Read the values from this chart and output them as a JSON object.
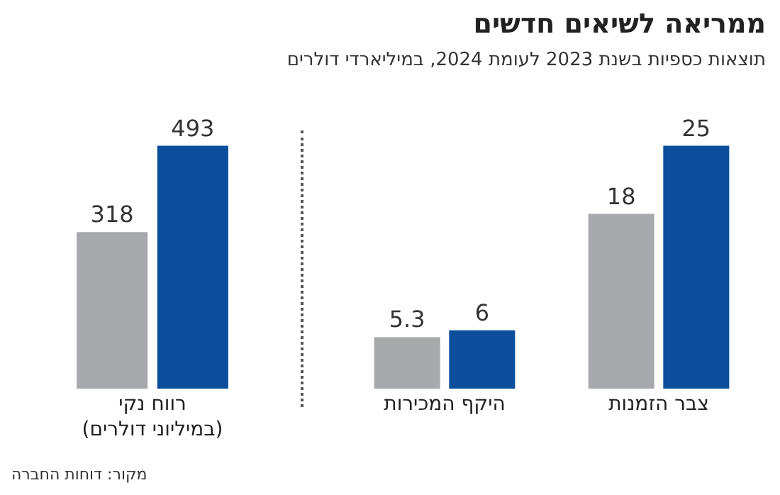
{
  "chart_data": [
    {
      "type": "other",
      "title": "ממריאה לשיאים חדשים",
      "subtitle": "תוצאות כספיות בשנת 2023 לעומת 2024, במיליארדי דולרים"
    },
    {
      "type": "bar",
      "annotations": [
        "מקור: דוחות החברה"
      ],
      "categories": [
        "רווח נקי\n(במיליוני דולרים)"
      ],
      "data_labels": true,
      "series": [
        {
          "color": "#a7a9ac",
          "values": [
            318
          ]
        },
        {
          "color": "#0b4f9c",
          "values": [
            493
          ]
        }
      ]
    },
    {
      "type": "bar",
      "categories": [
        "היקף המכירות",
        "צבר הזמנות"
      ],
      "data_labels": true,
      "series": [
        {
          "color": "#a7a9ac",
          "values": [
            5.3,
            18
          ]
        },
        {
          "color": "#0b4f9c",
          "values": [
            6,
            25
          ]
        }
      ]
    }
  ]
}
